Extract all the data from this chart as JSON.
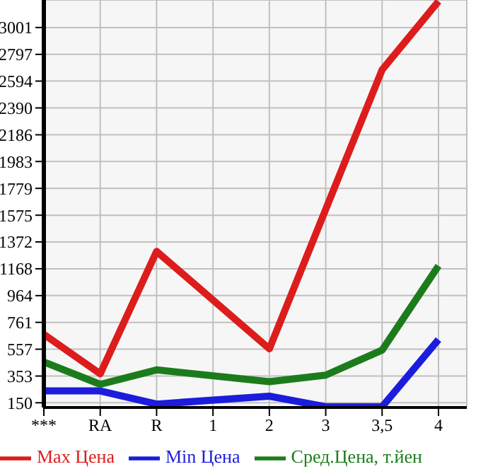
{
  "chart_data": {
    "type": "line",
    "categories": [
      "***",
      "RA",
      "R",
      "1",
      "2",
      "3",
      "3,5",
      "4"
    ],
    "series": [
      {
        "name": "Max Цена",
        "color": "#dd1c1c",
        "values": [
          670,
          370,
          1300,
          null,
          560,
          null,
          2680,
          3200
        ]
      },
      {
        "name": "Min Цена",
        "color": "#1c1cdd",
        "values": [
          240,
          240,
          140,
          null,
          200,
          120,
          120,
          630
        ]
      },
      {
        "name": "Сред.Цена, т.йен",
        "color": "#1c7c1c",
        "values": [
          460,
          290,
          400,
          null,
          310,
          360,
          550,
          1190
        ]
      }
    ],
    "ylim": [
      114,
      3210
    ],
    "yticks": [
      150,
      353,
      557,
      761,
      964,
      1168,
      1372,
      1575,
      1779,
      1983,
      2186,
      2390,
      2594,
      2797,
      3001
    ],
    "grid": true,
    "legend": "bottom",
    "marker": "none",
    "line_style": "solid"
  }
}
